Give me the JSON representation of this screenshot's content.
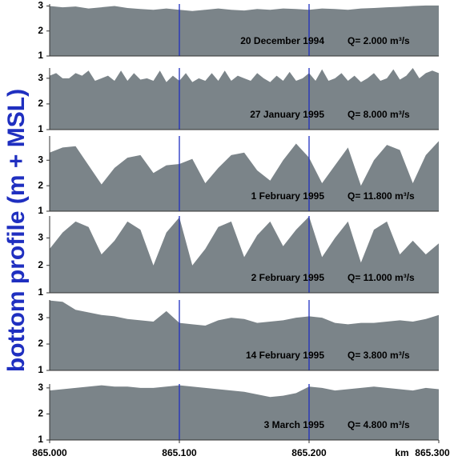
{
  "axes": {
    "ylabel": "bottom profile (m + MSL)",
    "xlabel": "km",
    "xlim": [
      865.0,
      865.3
    ],
    "xticks": [
      {
        "value": 865.0,
        "label": "865.000"
      },
      {
        "value": 865.1,
        "label": "865.100"
      },
      {
        "value": 865.2,
        "label": "865.200"
      },
      {
        "value": 865.3,
        "label": "865.300"
      }
    ],
    "color": "#7b8489",
    "grid_color": "#1f2fc0",
    "grid": true
  },
  "chart_data": [
    {
      "type": "area",
      "date": "20 December 1994",
      "discharge": "Q= 2.000  m³/s",
      "ylim": [
        1,
        3.08
      ],
      "yticks": [
        1,
        2,
        3
      ],
      "x": [
        865.0,
        865.01,
        865.02,
        865.03,
        865.04,
        865.05,
        865.06,
        865.07,
        865.08,
        865.09,
        865.1,
        865.11,
        865.12,
        865.13,
        865.14,
        865.15,
        865.16,
        865.17,
        865.18,
        865.19,
        865.2,
        865.21,
        865.22,
        865.23,
        865.24,
        865.25,
        865.26,
        865.27,
        865.28,
        865.29,
        865.3
      ],
      "values": [
        3.0,
        2.95,
        2.98,
        2.9,
        2.95,
        3.0,
        2.92,
        2.88,
        2.85,
        2.9,
        2.85,
        2.8,
        2.85,
        2.9,
        2.85,
        2.82,
        2.88,
        2.85,
        2.9,
        2.88,
        2.85,
        2.9,
        2.88,
        2.85,
        2.9,
        2.92,
        2.95,
        2.97,
        3.0,
        3.02,
        3.02
      ]
    },
    {
      "type": "area",
      "date": "27 January 1995",
      "discharge": "Q= 8.000  m³/s",
      "ylim": [
        1,
        3.4
      ],
      "yticks": [
        1,
        2,
        3
      ],
      "x": [
        865.0,
        865.005,
        865.01,
        865.015,
        865.02,
        865.025,
        865.03,
        865.035,
        865.04,
        865.045,
        865.05,
        865.055,
        865.06,
        865.065,
        865.07,
        865.075,
        865.08,
        865.085,
        865.09,
        865.095,
        865.1,
        865.105,
        865.11,
        865.115,
        865.12,
        865.125,
        865.13,
        865.135,
        865.14,
        865.145,
        865.15,
        865.155,
        865.16,
        865.165,
        865.17,
        865.175,
        865.18,
        865.185,
        865.19,
        865.195,
        865.2,
        865.205,
        865.21,
        865.215,
        865.22,
        865.225,
        865.23,
        865.235,
        865.24,
        865.245,
        865.25,
        865.255,
        865.26,
        865.265,
        865.27,
        865.275,
        865.28,
        865.285,
        865.29,
        865.295,
        865.3
      ],
      "values": [
        3.1,
        3.2,
        3.0,
        3.0,
        3.2,
        3.1,
        3.3,
        2.9,
        3.0,
        3.1,
        2.9,
        3.3,
        2.9,
        3.2,
        2.95,
        3.0,
        2.9,
        3.3,
        2.85,
        3.1,
        2.9,
        3.2,
        2.85,
        3.0,
        2.9,
        3.2,
        2.9,
        3.3,
        2.9,
        3.1,
        3.0,
        2.9,
        3.2,
        3.0,
        2.85,
        3.1,
        2.9,
        3.25,
        2.9,
        3.0,
        3.2,
        2.9,
        3.35,
        2.9,
        3.0,
        3.2,
        2.9,
        3.1,
        2.85,
        3.0,
        3.2,
        2.9,
        3.0,
        3.35,
        2.95,
        3.1,
        3.4,
        3.0,
        3.2,
        3.3,
        3.2
      ]
    },
    {
      "type": "area",
      "date": "1 February 1995",
      "discharge": "Q= 11.800  m³/s",
      "ylim": [
        1,
        3.95
      ],
      "yticks": [
        1,
        2,
        3
      ],
      "x": [
        865.0,
        865.01,
        865.02,
        865.03,
        865.04,
        865.05,
        865.06,
        865.07,
        865.08,
        865.09,
        865.1,
        865.11,
        865.12,
        865.13,
        865.14,
        865.15,
        865.16,
        865.17,
        865.18,
        865.19,
        865.2,
        865.21,
        865.22,
        865.23,
        865.24,
        865.25,
        865.26,
        865.27,
        865.28,
        865.29,
        865.3
      ],
      "values": [
        3.3,
        3.5,
        3.55,
        2.8,
        2.05,
        2.7,
        3.1,
        3.2,
        2.5,
        2.8,
        2.85,
        3.05,
        2.1,
        2.7,
        3.2,
        3.3,
        2.6,
        2.2,
        3.0,
        3.65,
        3.1,
        2.1,
        2.8,
        3.5,
        2.0,
        3.0,
        3.6,
        3.4,
        2.1,
        3.2,
        3.75
      ]
    },
    {
      "type": "area",
      "date": "2 February 1995",
      "discharge": "Q= 11.000  m³/s",
      "ylim": [
        1,
        3.8
      ],
      "yticks": [
        1,
        2,
        3
      ],
      "x": [
        865.0,
        865.01,
        865.02,
        865.03,
        865.04,
        865.05,
        865.06,
        865.07,
        865.08,
        865.09,
        865.1,
        865.11,
        865.12,
        865.13,
        865.14,
        865.15,
        865.16,
        865.17,
        865.18,
        865.19,
        865.2,
        865.21,
        865.22,
        865.23,
        865.24,
        865.25,
        865.26,
        865.27,
        865.28,
        865.29,
        865.3
      ],
      "values": [
        2.6,
        3.2,
        3.6,
        3.4,
        2.4,
        2.9,
        3.6,
        3.3,
        2.0,
        3.2,
        3.75,
        2.0,
        2.6,
        3.4,
        3.6,
        2.3,
        3.1,
        3.6,
        2.7,
        3.3,
        3.78,
        2.3,
        3.0,
        3.6,
        2.1,
        3.3,
        3.6,
        2.4,
        2.9,
        2.4,
        2.8
      ]
    },
    {
      "type": "area",
      "date": "14 February 1995",
      "discharge": "Q= 3.800  m³/s",
      "ylim": [
        1,
        3.67
      ],
      "yticks": [
        1,
        2,
        3
      ],
      "x": [
        865.0,
        865.01,
        865.02,
        865.03,
        865.04,
        865.05,
        865.06,
        865.07,
        865.08,
        865.09,
        865.1,
        865.11,
        865.12,
        865.13,
        865.14,
        865.15,
        865.16,
        865.17,
        865.18,
        865.19,
        865.2,
        865.21,
        865.22,
        865.23,
        865.24,
        865.25,
        865.26,
        865.27,
        865.28,
        865.29,
        865.3
      ],
      "values": [
        3.65,
        3.6,
        3.3,
        3.2,
        3.1,
        3.05,
        2.95,
        2.9,
        2.85,
        3.25,
        2.8,
        2.75,
        2.7,
        2.9,
        3.0,
        2.95,
        2.8,
        2.85,
        2.9,
        3.0,
        3.05,
        3.0,
        2.8,
        2.75,
        2.8,
        2.8,
        2.85,
        2.9,
        2.85,
        2.95,
        3.1
      ]
    },
    {
      "type": "area",
      "date": "3 March 1995",
      "discharge": "Q= 4.800  m³/s",
      "ylim": [
        1,
        3.15
      ],
      "yticks": [
        1,
        2,
        3
      ],
      "x": [
        865.0,
        865.01,
        865.02,
        865.03,
        865.04,
        865.05,
        865.06,
        865.07,
        865.08,
        865.09,
        865.1,
        865.11,
        865.12,
        865.13,
        865.14,
        865.15,
        865.16,
        865.17,
        865.18,
        865.19,
        865.2,
        865.21,
        865.22,
        865.23,
        865.24,
        865.25,
        865.26,
        865.27,
        865.28,
        865.29,
        865.3
      ],
      "values": [
        2.9,
        2.95,
        3.0,
        3.05,
        3.1,
        3.05,
        3.05,
        3.0,
        3.0,
        3.05,
        3.1,
        3.05,
        3.0,
        2.95,
        2.9,
        2.85,
        2.75,
        2.65,
        2.7,
        2.8,
        3.05,
        3.0,
        2.9,
        2.95,
        3.0,
        3.05,
        3.0,
        2.95,
        2.9,
        3.0,
        2.95
      ]
    }
  ]
}
